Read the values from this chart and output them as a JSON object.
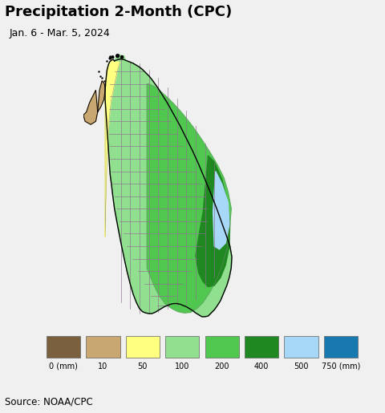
{
  "title": "Precipitation 2-Month (CPC)",
  "subtitle": "Jan. 6 - Mar. 5, 2024",
  "source": "Source: NOAA/CPC",
  "ocean_color": "#c0ecec",
  "legend_labels": [
    "0 (mm)",
    "10",
    "50",
    "100",
    "200",
    "400",
    "500",
    "750 (mm)"
  ],
  "legend_colors": [
    "#7b6040",
    "#c8a870",
    "#ffff80",
    "#90e090",
    "#50c850",
    "#208820",
    "#a8d8f8",
    "#1878b0"
  ],
  "title_fontsize": 13,
  "subtitle_fontsize": 9,
  "source_fontsize": 8.5,
  "color_0_10": "#7b6040",
  "color_10_50": "#c8a870",
  "color_50_100": "#ffff80",
  "color_100_200": "#90e090",
  "color_200_400": "#50c850",
  "color_400_500": "#208820",
  "color_500_750": "#a8d8f8",
  "color_750plus": "#1878b0",
  "map_xlim": [
    79.5,
    83.0
  ],
  "map_ylim": [
    5.7,
    10.3
  ],
  "title_bg": "white",
  "legend_bg": "white",
  "source_bg": "#e8e8e8"
}
